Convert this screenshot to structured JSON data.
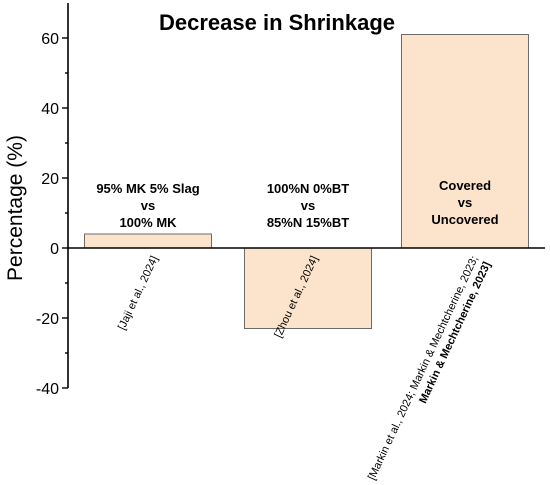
{
  "chart_data": {
    "type": "bar",
    "title": "Decrease in Shrinkage",
    "ylabel": "Percentage (%)",
    "xlabel": "",
    "ylim": [
      -40,
      70
    ],
    "yticks": [
      -40,
      -20,
      0,
      20,
      40,
      60
    ],
    "grid": false,
    "colors": {
      "bar_fill": "#fbe3cc",
      "bar_stroke": "#6b6b6b"
    },
    "categories": [
      "[Jaji et al., 2024]",
      "[Zhou et al., 2024]",
      "[Markin et al., 2024; Markin & Mechtcherine, 2023; Markin & Mechtcherine, 2023]"
    ],
    "values": [
      4,
      -23,
      61
    ],
    "annotations": [
      [
        "95% MK 5% Slag",
        "vs",
        "100% MK"
      ],
      [
        "100%N 0%BT",
        "vs",
        "85%N 15%BT"
      ],
      [
        "Covered",
        "vs",
        "Uncovered"
      ]
    ],
    "category_lines": [
      [
        "[Jaji et al., 2024]"
      ],
      [
        "[Zhou et al., 2024]"
      ],
      [
        "[Markin et al., 2024; Markin & Mechtcherine, 2023;",
        "Markin & Mechtcherine, 2023]"
      ]
    ]
  }
}
